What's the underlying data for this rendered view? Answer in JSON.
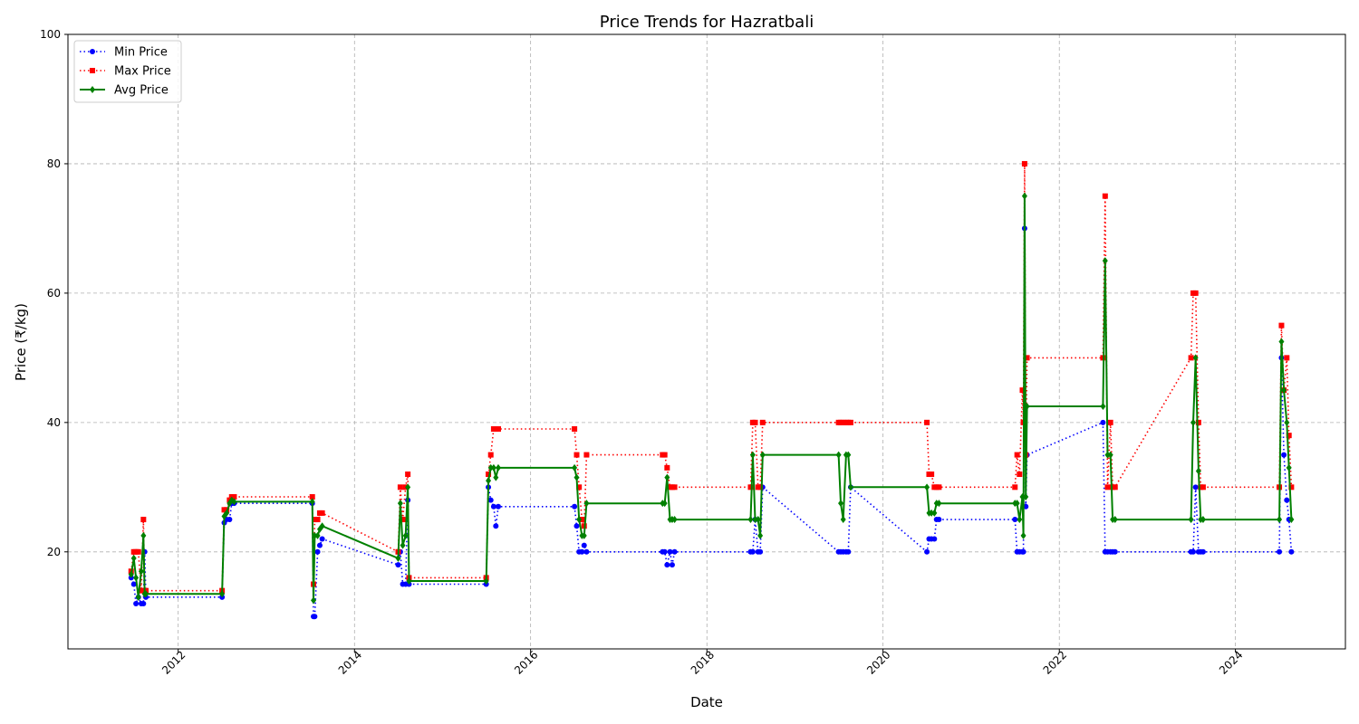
{
  "chart_data": {
    "type": "line",
    "title": "Price Trends for Hazratbali",
    "xlabel": "Date",
    "ylabel": "Price (₹/kg)",
    "x_axis_type": "date",
    "xlim": [
      "2010-10-01",
      "2025-04-01"
    ],
    "ylim": [
      5,
      100
    ],
    "x_ticks": [
      "2012-01-01",
      "2014-01-01",
      "2016-01-01",
      "2018-01-01",
      "2020-01-01",
      "2022-01-01",
      "2024-01-01"
    ],
    "x_tick_labels": [
      "2012",
      "2014",
      "2016",
      "2018",
      "2020",
      "2022",
      "2024"
    ],
    "y_ticks": [
      20,
      40,
      60,
      80,
      100
    ],
    "grid": true,
    "legend_position": "top-left",
    "series": [
      {
        "name": "Min Price",
        "color": "#0000ff",
        "line_style": "dotted",
        "marker": "circle",
        "x": [
          "2011-06-20",
          "2011-07-01",
          "2011-07-10",
          "2011-07-20",
          "2011-08-01",
          "2011-08-10",
          "2011-08-15",
          "2011-08-20",
          "2012-07-01",
          "2012-07-10",
          "2012-07-20",
          "2012-08-01",
          "2012-08-10",
          "2012-08-20",
          "2013-07-10",
          "2013-07-15",
          "2013-07-20",
          "2013-08-01",
          "2013-08-10",
          "2013-08-20",
          "2014-07-01",
          "2014-07-10",
          "2014-07-20",
          "2014-08-01",
          "2014-08-10",
          "2014-08-15",
          "2015-07-01",
          "2015-07-10",
          "2015-07-20",
          "2015-08-01",
          "2015-08-10",
          "2015-08-20",
          "2016-07-01",
          "2016-07-10",
          "2016-07-20",
          "2016-08-01",
          "2016-08-10",
          "2016-08-20",
          "2017-07-01",
          "2017-07-10",
          "2017-07-20",
          "2017-08-01",
          "2017-08-10",
          "2017-08-20",
          "2018-07-01",
          "2018-07-10",
          "2018-07-20",
          "2018-08-01",
          "2018-08-10",
          "2018-08-20",
          "2019-07-01",
          "2019-07-10",
          "2019-07-20",
          "2019-08-01",
          "2019-08-10",
          "2019-08-20",
          "2020-07-01",
          "2020-07-10",
          "2020-07-20",
          "2020-08-01",
          "2020-08-10",
          "2020-08-20",
          "2021-07-01",
          "2021-07-10",
          "2021-07-20",
          "2021-08-01",
          "2021-08-05",
          "2021-08-10",
          "2021-08-15",
          "2021-08-20",
          "2022-07-01",
          "2022-07-10",
          "2022-07-20",
          "2022-08-01",
          "2022-08-10",
          "2022-08-20",
          "2023-07-01",
          "2023-07-10",
          "2023-07-20",
          "2023-08-01",
          "2023-08-10",
          "2023-08-20",
          "2024-07-01",
          "2024-07-10",
          "2024-07-20",
          "2024-08-01",
          "2024-08-10",
          "2024-08-20"
        ],
        "y": [
          16,
          15,
          12,
          13,
          12,
          12,
          20,
          13,
          13,
          24.5,
          25,
          25,
          27.5,
          27.5,
          27.5,
          10,
          10,
          20,
          21,
          22,
          18,
          20,
          15,
          15,
          28,
          15,
          15,
          30,
          28,
          27,
          24,
          27,
          27,
          24,
          20,
          20,
          21,
          20,
          20,
          20,
          18,
          20,
          18,
          20,
          20,
          20,
          25,
          20,
          20,
          30,
          20,
          20,
          20,
          20,
          20,
          30,
          20,
          22,
          22,
          22,
          25,
          25,
          25,
          20,
          20,
          20,
          20,
          70,
          27,
          35,
          40,
          20,
          20,
          20,
          20,
          20,
          20,
          20,
          30,
          20,
          20,
          20,
          20,
          50,
          35,
          28,
          25,
          20
        ]
      },
      {
        "name": "Max Price",
        "color": "#ff0000",
        "line_style": "dotted",
        "marker": "square",
        "x": [
          "2011-06-20",
          "2011-07-01",
          "2011-07-10",
          "2011-07-20",
          "2011-08-01",
          "2011-08-10",
          "2011-08-15",
          "2011-08-20",
          "2012-07-01",
          "2012-07-10",
          "2012-07-20",
          "2012-08-01",
          "2012-08-10",
          "2012-08-20",
          "2013-07-10",
          "2013-07-15",
          "2013-07-20",
          "2013-08-01",
          "2013-08-10",
          "2013-08-20",
          "2014-07-01",
          "2014-07-10",
          "2014-07-20",
          "2014-08-01",
          "2014-08-10",
          "2014-08-15",
          "2015-07-01",
          "2015-07-10",
          "2015-07-20",
          "2015-08-01",
          "2015-08-10",
          "2015-08-20",
          "2016-07-01",
          "2016-07-10",
          "2016-07-20",
          "2016-08-01",
          "2016-08-10",
          "2016-08-20",
          "2017-07-01",
          "2017-07-10",
          "2017-07-20",
          "2017-08-01",
          "2017-08-10",
          "2017-08-20",
          "2018-07-01",
          "2018-07-10",
          "2018-07-20",
          "2018-08-01",
          "2018-08-10",
          "2018-08-20",
          "2019-07-01",
          "2019-07-10",
          "2019-07-20",
          "2019-08-01",
          "2019-08-10",
          "2019-08-20",
          "2020-07-01",
          "2020-07-10",
          "2020-07-20",
          "2020-08-01",
          "2020-08-10",
          "2020-08-20",
          "2021-07-01",
          "2021-07-10",
          "2021-07-20",
          "2021-08-01",
          "2021-08-05",
          "2021-08-10",
          "2021-08-15",
          "2021-08-20",
          "2022-07-01",
          "2022-07-10",
          "2022-07-20",
          "2022-08-01",
          "2022-08-10",
          "2022-08-20",
          "2023-07-01",
          "2023-07-10",
          "2023-07-20",
          "2023-08-01",
          "2023-08-10",
          "2023-08-20",
          "2024-07-01",
          "2024-07-10",
          "2024-07-20",
          "2024-08-01",
          "2024-08-10",
          "2024-08-20"
        ],
        "y": [
          17,
          20,
          20,
          20,
          14,
          25,
          14,
          14,
          14,
          26.5,
          26.5,
          28,
          28.5,
          28.5,
          28.5,
          15,
          25,
          25,
          26,
          26,
          20,
          30,
          25,
          30,
          32,
          16,
          16,
          32,
          35,
          39,
          39,
          39,
          39,
          35,
          30,
          25,
          24,
          35,
          35,
          35,
          33,
          30,
          30,
          30,
          30,
          40,
          40,
          30,
          30,
          40,
          40,
          40,
          40,
          40,
          40,
          40,
          40,
          32,
          32,
          30,
          30,
          30,
          30,
          35,
          32,
          45,
          40,
          80,
          35,
          50,
          50,
          75,
          30,
          40,
          30,
          30,
          50,
          60,
          60,
          40,
          30,
          30,
          30,
          55,
          45,
          50,
          38,
          30
        ]
      },
      {
        "name": "Avg Price",
        "color": "#008000",
        "line_style": "solid",
        "marker": "diamond",
        "x": [
          "2011-06-20",
          "2011-07-01",
          "2011-07-10",
          "2011-07-20",
          "2011-08-01",
          "2011-08-10",
          "2011-08-15",
          "2011-08-20",
          "2012-07-01",
          "2012-07-10",
          "2012-07-20",
          "2012-08-01",
          "2012-08-10",
          "2012-08-20",
          "2013-07-10",
          "2013-07-15",
          "2013-07-20",
          "2013-08-01",
          "2013-08-10",
          "2013-08-20",
          "2014-07-01",
          "2014-07-10",
          "2014-07-20",
          "2014-08-01",
          "2014-08-10",
          "2014-08-15",
          "2015-07-01",
          "2015-07-10",
          "2015-07-20",
          "2015-08-01",
          "2015-08-10",
          "2015-08-20",
          "2016-07-01",
          "2016-07-10",
          "2016-07-20",
          "2016-08-01",
          "2016-08-10",
          "2016-08-20",
          "2017-07-01",
          "2017-07-10",
          "2017-07-20",
          "2017-08-01",
          "2017-08-10",
          "2017-08-20",
          "2018-07-01",
          "2018-07-10",
          "2018-07-20",
          "2018-08-01",
          "2018-08-10",
          "2018-08-20",
          "2019-07-01",
          "2019-07-10",
          "2019-07-20",
          "2019-08-01",
          "2019-08-10",
          "2019-08-20",
          "2020-07-01",
          "2020-07-10",
          "2020-07-20",
          "2020-08-01",
          "2020-08-10",
          "2020-08-20",
          "2021-07-01",
          "2021-07-10",
          "2021-07-20",
          "2021-08-01",
          "2021-08-05",
          "2021-08-10",
          "2021-08-15",
          "2021-08-20",
          "2022-07-01",
          "2022-07-10",
          "2022-07-20",
          "2022-08-01",
          "2022-08-10",
          "2022-08-20",
          "2023-07-01",
          "2023-07-10",
          "2023-07-20",
          "2023-08-01",
          "2023-08-10",
          "2023-08-20",
          "2024-07-01",
          "2024-07-10",
          "2024-07-20",
          "2024-08-01",
          "2024-08-10",
          "2024-08-20"
        ],
        "y": [
          16.5,
          19,
          16,
          13,
          17,
          22.5,
          13.5,
          13.5,
          13.5,
          25.5,
          26,
          27.5,
          28,
          27.75,
          27.75,
          12.5,
          22.5,
          22.5,
          23.5,
          24,
          19,
          27.5,
          21,
          22.5,
          30,
          15.5,
          15.5,
          31,
          33,
          33,
          31.5,
          33,
          33,
          31.5,
          25,
          22.5,
          22.5,
          27.5,
          27.5,
          27.5,
          31.5,
          25,
          25,
          25,
          25,
          35,
          25,
          25,
          22.5,
          35,
          35,
          27.5,
          25,
          35,
          35,
          30,
          30,
          26,
          26,
          26,
          27.5,
          27.5,
          27.5,
          27.5,
          25,
          28.5,
          22.5,
          75,
          28.5,
          42.5,
          42.5,
          65,
          35,
          35,
          25,
          25,
          25,
          40,
          50,
          32.5,
          25,
          25,
          25,
          52.5,
          45,
          40,
          33,
          25
        ]
      }
    ]
  }
}
